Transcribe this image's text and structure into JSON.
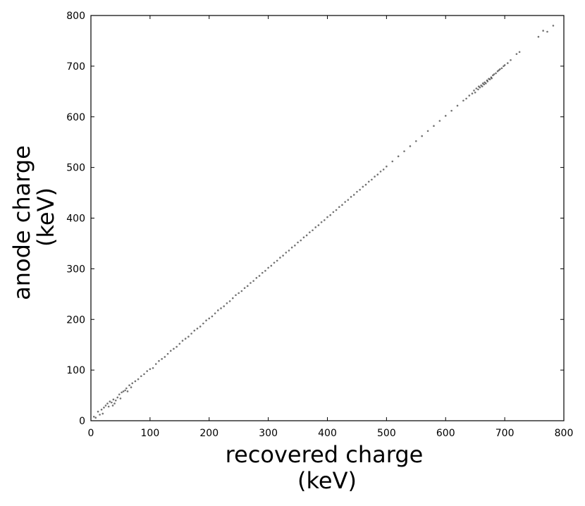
{
  "chart_data": {
    "type": "scatter",
    "title": "",
    "xlabel": [
      "recovered charge",
      "(keV)"
    ],
    "ylabel": [
      "anode charge",
      "(keV)"
    ],
    "xlim": [
      0,
      800
    ],
    "ylim": [
      0,
      800
    ],
    "xticks": [
      0,
      100,
      200,
      300,
      400,
      500,
      600,
      700,
      800
    ],
    "yticks": [
      0,
      100,
      200,
      300,
      400,
      500,
      600,
      700,
      800
    ],
    "grid": false,
    "legend": "none",
    "point_color": "#000000",
    "series": [
      {
        "points": [
          [
            5,
            8
          ],
          [
            8,
            6
          ],
          [
            12,
            18
          ],
          [
            15,
            12
          ],
          [
            18,
            22
          ],
          [
            20,
            14
          ],
          [
            22,
            26
          ],
          [
            25,
            30
          ],
          [
            28,
            34
          ],
          [
            30,
            28
          ],
          [
            32,
            38
          ],
          [
            35,
            36
          ],
          [
            37,
            30
          ],
          [
            38,
            42
          ],
          [
            40,
            34
          ],
          [
            42,
            40
          ],
          [
            45,
            46
          ],
          [
            48,
            52
          ],
          [
            50,
            44
          ],
          [
            52,
            56
          ],
          [
            55,
            58
          ],
          [
            58,
            60
          ],
          [
            60,
            64
          ],
          [
            62,
            58
          ],
          [
            65,
            70
          ],
          [
            68,
            66
          ],
          [
            70,
            74
          ],
          [
            75,
            78
          ],
          [
            80,
            82
          ],
          [
            85,
            88
          ],
          [
            90,
            92
          ],
          [
            95,
            98
          ],
          [
            100,
            102
          ],
          [
            105,
            104
          ],
          [
            110,
            112
          ],
          [
            115,
            118
          ],
          [
            120,
            122
          ],
          [
            125,
            126
          ],
          [
            130,
            132
          ],
          [
            135,
            138
          ],
          [
            140,
            142
          ],
          [
            145,
            146
          ],
          [
            150,
            152
          ],
          [
            155,
            158
          ],
          [
            160,
            162
          ],
          [
            165,
            166
          ],
          [
            170,
            172
          ],
          [
            175,
            178
          ],
          [
            180,
            182
          ],
          [
            185,
            186
          ],
          [
            190,
            192
          ],
          [
            195,
            198
          ],
          [
            200,
            202
          ],
          [
            205,
            206
          ],
          [
            210,
            212
          ],
          [
            215,
            218
          ],
          [
            220,
            222
          ],
          [
            225,
            226
          ],
          [
            230,
            232
          ],
          [
            235,
            236
          ],
          [
            240,
            242
          ],
          [
            245,
            248
          ],
          [
            250,
            252
          ],
          [
            255,
            256
          ],
          [
            260,
            262
          ],
          [
            265,
            266
          ],
          [
            270,
            272
          ],
          [
            275,
            276
          ],
          [
            280,
            282
          ],
          [
            285,
            286
          ],
          [
            290,
            292
          ],
          [
            295,
            296
          ],
          [
            300,
            302
          ],
          [
            305,
            306
          ],
          [
            310,
            312
          ],
          [
            315,
            316
          ],
          [
            320,
            322
          ],
          [
            325,
            326
          ],
          [
            330,
            332
          ],
          [
            335,
            336
          ],
          [
            340,
            342
          ],
          [
            345,
            346
          ],
          [
            350,
            352
          ],
          [
            355,
            356
          ],
          [
            360,
            362
          ],
          [
            365,
            366
          ],
          [
            370,
            372
          ],
          [
            375,
            376
          ],
          [
            380,
            382
          ],
          [
            385,
            386
          ],
          [
            390,
            392
          ],
          [
            395,
            396
          ],
          [
            400,
            402
          ],
          [
            405,
            406
          ],
          [
            410,
            412
          ],
          [
            415,
            416
          ],
          [
            420,
            422
          ],
          [
            425,
            426
          ],
          [
            430,
            432
          ],
          [
            435,
            436
          ],
          [
            440,
            442
          ],
          [
            445,
            446
          ],
          [
            450,
            452
          ],
          [
            455,
            456
          ],
          [
            460,
            462
          ],
          [
            465,
            466
          ],
          [
            470,
            472
          ],
          [
            475,
            476
          ],
          [
            480,
            482
          ],
          [
            485,
            486
          ],
          [
            490,
            492
          ],
          [
            495,
            496
          ],
          [
            500,
            502
          ],
          [
            510,
            512
          ],
          [
            520,
            522
          ],
          [
            530,
            532
          ],
          [
            540,
            542
          ],
          [
            550,
            552
          ],
          [
            560,
            562
          ],
          [
            570,
            572
          ],
          [
            580,
            582
          ],
          [
            590,
            592
          ],
          [
            600,
            602
          ],
          [
            610,
            612
          ],
          [
            620,
            622
          ],
          [
            630,
            632
          ],
          [
            635,
            636
          ],
          [
            640,
            642
          ],
          [
            645,
            646
          ],
          [
            648,
            652
          ],
          [
            650,
            648
          ],
          [
            652,
            656
          ],
          [
            655,
            654
          ],
          [
            656,
            660
          ],
          [
            658,
            658
          ],
          [
            660,
            662
          ],
          [
            662,
            660
          ],
          [
            663,
            666
          ],
          [
            665,
            664
          ],
          [
            666,
            668
          ],
          [
            668,
            666
          ],
          [
            670,
            672
          ],
          [
            671,
            670
          ],
          [
            673,
            675
          ],
          [
            675,
            674
          ],
          [
            677,
            678
          ],
          [
            678,
            676
          ],
          [
            680,
            682
          ],
          [
            682,
            684
          ],
          [
            685,
            686
          ],
          [
            688,
            690
          ],
          [
            690,
            692
          ],
          [
            692,
            694
          ],
          [
            695,
            696
          ],
          [
            698,
            700
          ],
          [
            700,
            702
          ],
          [
            705,
            706
          ],
          [
            710,
            712
          ],
          [
            720,
            724
          ],
          [
            725,
            728
          ],
          [
            757,
            758
          ],
          [
            765,
            770
          ],
          [
            772,
            768
          ],
          [
            782,
            780
          ]
        ]
      }
    ]
  }
}
